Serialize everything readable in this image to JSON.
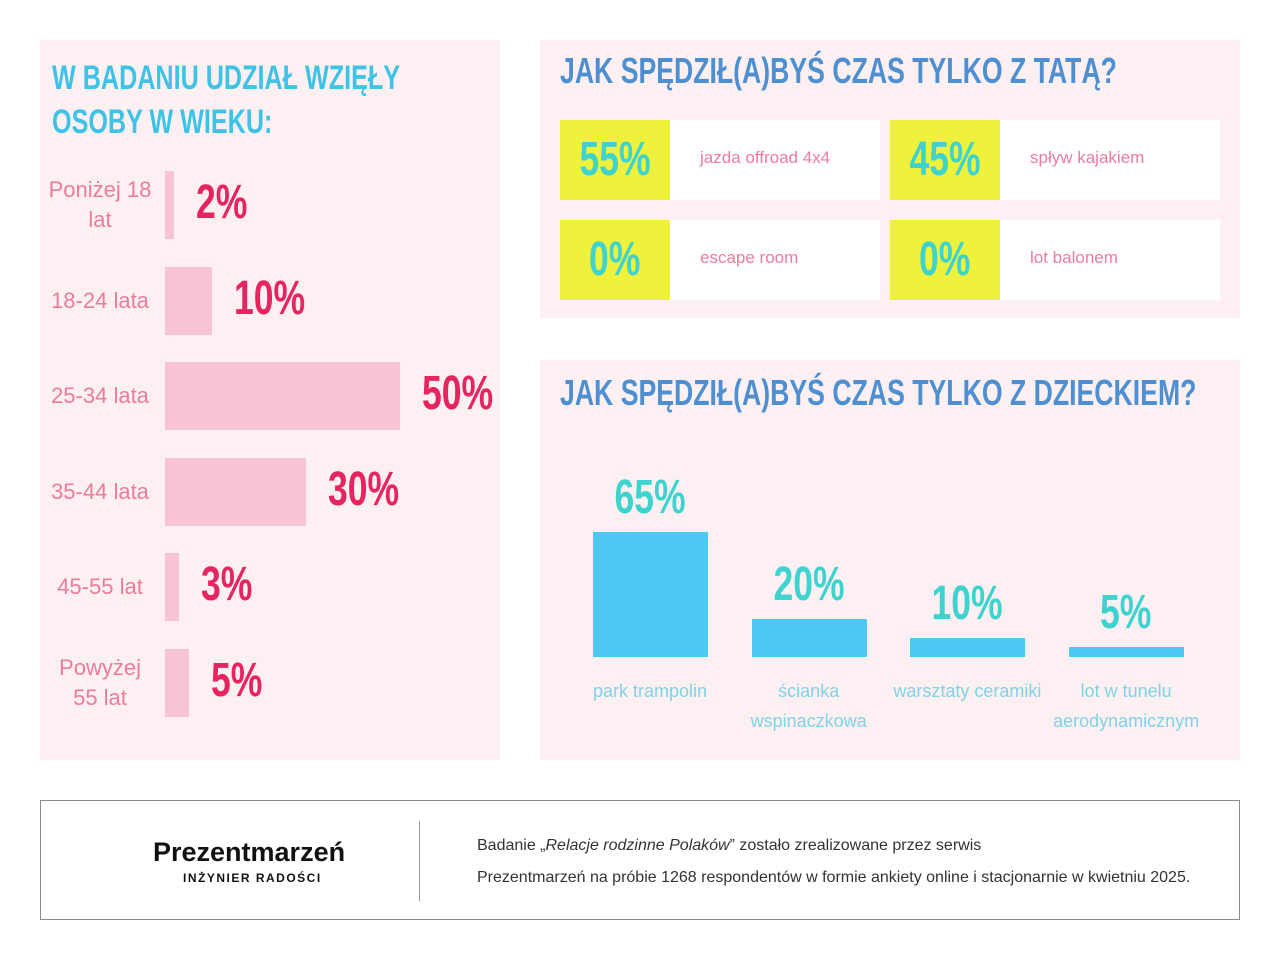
{
  "chart_data": [
    {
      "type": "hbar",
      "title": "W BADANIU UDZIAŁ WZIĘŁY OSOBY W WIEKU:",
      "categories": [
        "Poniżej 18 lat",
        "18-24 lata",
        "25-34 lata",
        "35-44 lata",
        "45-55 lat",
        "Powyżej 55 lat"
      ],
      "values": [
        2,
        10,
        50,
        30,
        3,
        5
      ],
      "value_labels": [
        "2%",
        "10%",
        "50%",
        "30%",
        "3%",
        "5%"
      ],
      "color": "#f8c3d5"
    },
    {
      "type": "tiles",
      "title": "JAK SPĘDZIŁ(A)BYŚ CZAS TYLKO Z TATĄ?",
      "categories": [
        "jazda offroad 4x4",
        "spływ kajakiem",
        "escape room",
        "lot balonem"
      ],
      "values": [
        55,
        45,
        0,
        0
      ],
      "value_labels": [
        "55%",
        "45%",
        "0%",
        "0%"
      ],
      "color": "#eef23c"
    },
    {
      "type": "bar",
      "title": "JAK SPĘDZIŁ(A)BYŚ CZAS TYLKO Z DZIECKIEM?",
      "categories": [
        "park trampolin",
        "ścianka wspinaczkowa",
        "warsztaty ceramiki",
        "lot w tunelu aerodynamicznym"
      ],
      "values": [
        65,
        20,
        10,
        5
      ],
      "value_labels": [
        "65%",
        "20%",
        "10%",
        "5%"
      ],
      "color": "#4cc8f2"
    }
  ],
  "footer": {
    "logo": "Prezentmarzeń",
    "tagline": "INŻYNIER RADOŚCI",
    "note_start": "Badanie „",
    "note_title": "Relacje rodzinne Polaków",
    "note_end": "” zostało zrealizowane przez serwis",
    "note_line2": "Prezentmarzeń na próbie 1268 respondentów w formie ankiety online i stacjonarnie w kwietniu 2025."
  }
}
